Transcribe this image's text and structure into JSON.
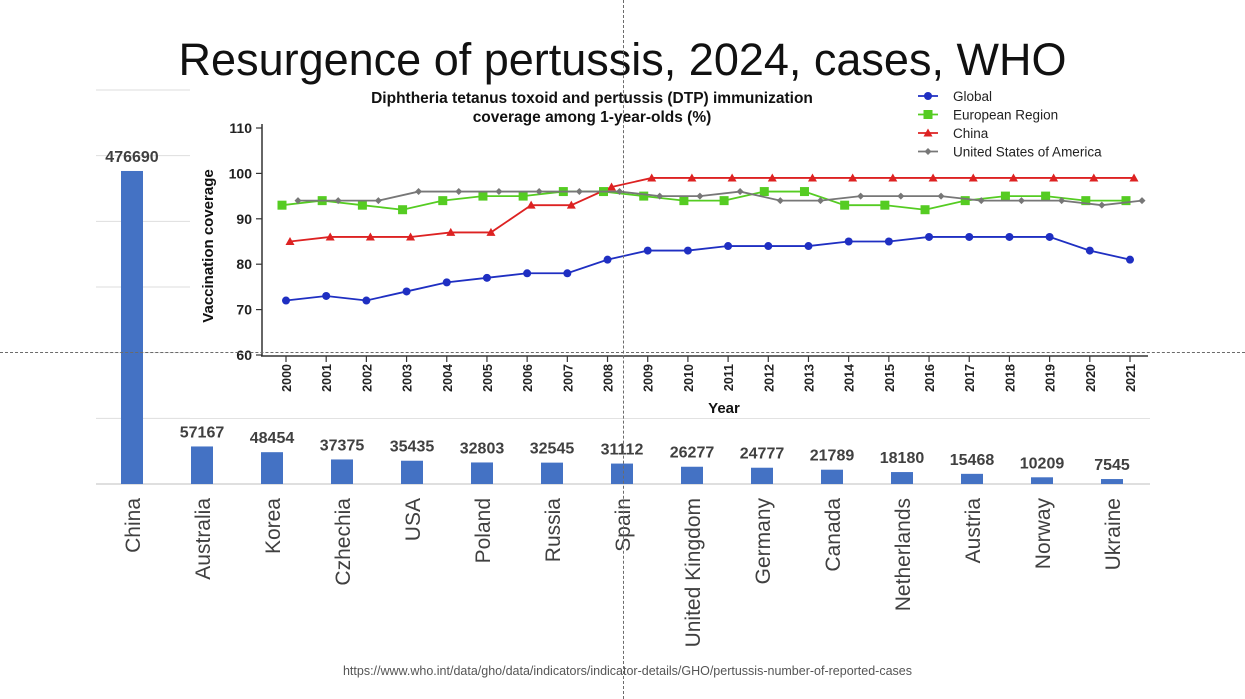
{
  "slide": {
    "title": "Resurgence of pertussis, 2024, cases, WHO",
    "source_url": "https://www.who.int/data/gho/data/indicators/indicator-details/GHO/pertussis-number-of-reported-cases"
  },
  "colors": {
    "bar": "#4472c4",
    "global": "#1f2fc2",
    "europe": "#55cc22",
    "china": "#dd2222",
    "usa": "#777777"
  },
  "chart_data": [
    {
      "type": "bar",
      "title": "",
      "xlabel": "",
      "ylabel": "",
      "categories": [
        "China",
        "Australia",
        "Korea",
        "Czhechia",
        "USA",
        "Poland",
        "Russia",
        "Spain",
        "United Kingdom",
        "Germany",
        "Canada",
        "Netherlands",
        "Austria",
        "Norway",
        "Ukraine"
      ],
      "values": [
        476690,
        57167,
        48454,
        37375,
        35435,
        32803,
        32545,
        31112,
        26277,
        24777,
        21789,
        18180,
        15468,
        10209,
        7545
      ],
      "ylim": [
        0,
        600000
      ],
      "grid": true
    },
    {
      "type": "line",
      "title": "Diphtheria tetanus toxoid and pertussis (DTP) immunization coverage among 1-year-olds (%)",
      "title_lines": [
        "Diphtheria tetanus toxoid and pertussis (DTP) immunization",
        "coverage among 1-year-olds (%)"
      ],
      "xlabel": "Year",
      "ylabel": "Vaccination coverage",
      "ylim": [
        60,
        110
      ],
      "yticks": [
        60,
        70,
        80,
        90,
        100,
        110
      ],
      "x": [
        "2000",
        "2001",
        "2002",
        "2003",
        "2004",
        "2005",
        "2006",
        "2007",
        "2008",
        "2009",
        "2010",
        "2011",
        "2012",
        "2013",
        "2014",
        "2015",
        "2016",
        "2017",
        "2018",
        "2019",
        "2020",
        "2021"
      ],
      "legend_position": "top-right",
      "series": [
        {
          "name": "Global",
          "marker": "circle",
          "values": [
            72,
            73,
            72,
            74,
            76,
            77,
            78,
            78,
            81,
            83,
            83,
            84,
            84,
            84,
            85,
            85,
            86,
            86,
            86,
            86,
            83,
            81
          ]
        },
        {
          "name": "European Region",
          "marker": "square",
          "values": [
            93,
            94,
            93,
            92,
            94,
            95,
            95,
            96,
            96,
            95,
            94,
            94,
            96,
            96,
            93,
            93,
            92,
            94,
            95,
            95,
            94,
            94
          ]
        },
        {
          "name": "China",
          "marker": "triangle",
          "values": [
            85,
            86,
            86,
            86,
            87,
            87,
            93,
            93,
            97,
            99,
            99,
            99,
            99,
            99,
            99,
            99,
            99,
            99,
            99,
            99,
            99,
            99
          ]
        },
        {
          "name": "United States of America",
          "marker": "diamond",
          "values": [
            94,
            94,
            94,
            96,
            96,
            96,
            96,
            96,
            96,
            95,
            95,
            96,
            94,
            94,
            95,
            95,
            95,
            94,
            94,
            94,
            93,
            94
          ]
        }
      ]
    }
  ]
}
